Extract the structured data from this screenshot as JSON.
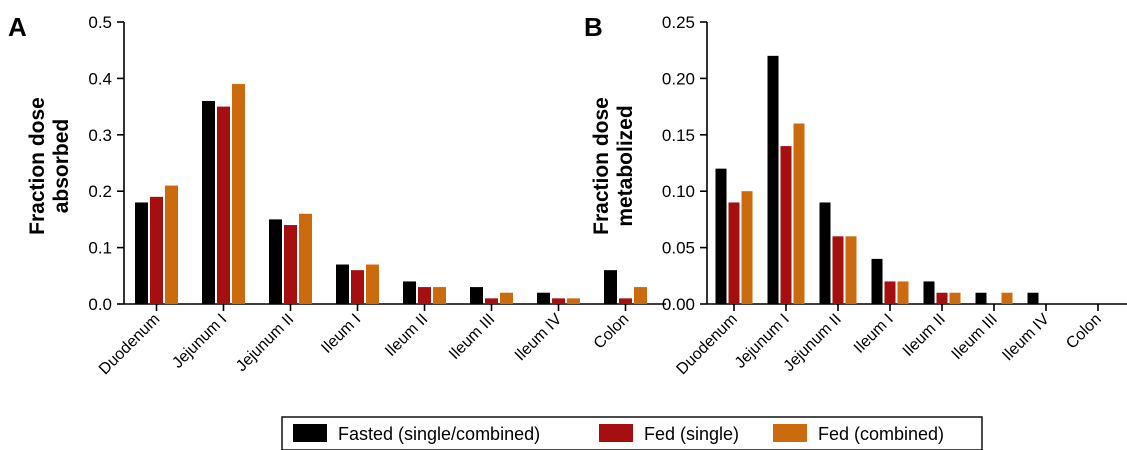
{
  "colors": {
    "fasted": "#000000",
    "fed_single": "#a50f0f",
    "fed_combined": "#cc6a0e"
  },
  "legend": {
    "items": [
      {
        "label": "Fasted (single/combined)",
        "color_key": "fasted"
      },
      {
        "label": "Fed (single)",
        "color_key": "fed_single"
      },
      {
        "label": "Fed (combined)",
        "color_key": "fed_combined"
      }
    ]
  },
  "chart_data": [
    {
      "panel": "A",
      "type": "bar",
      "ylabel_lines": [
        "Fraction dose",
        "absorbed"
      ],
      "xlabel": "",
      "ylim": [
        0,
        0.5
      ],
      "yticks": [
        "0.0",
        "0.1",
        "0.2",
        "0.3",
        "0.4",
        "0.5"
      ],
      "ytick_values": [
        0,
        0.1,
        0.2,
        0.3,
        0.4,
        0.5
      ],
      "categories": [
        "Duodenum",
        "Jejunum I",
        "Jejunum II",
        "Ileum I",
        "Ileum II",
        "Ileum III",
        "Ileum IV",
        "Colon"
      ],
      "series": [
        {
          "name": "Fasted (single/combined)",
          "values": [
            0.18,
            0.36,
            0.15,
            0.07,
            0.04,
            0.03,
            0.02,
            0.06
          ]
        },
        {
          "name": "Fed (single)",
          "values": [
            0.19,
            0.35,
            0.14,
            0.06,
            0.03,
            0.01,
            0.01,
            0.01
          ]
        },
        {
          "name": "Fed (combined)",
          "values": [
            0.21,
            0.39,
            0.16,
            0.07,
            0.03,
            0.02,
            0.01,
            0.03
          ]
        }
      ]
    },
    {
      "panel": "B",
      "type": "bar",
      "ylabel_lines": [
        "Fraction dose",
        "metabolized"
      ],
      "xlabel": "",
      "ylim": [
        0,
        0.25
      ],
      "yticks": [
        "0.00",
        "0.05",
        "0.10",
        "0.15",
        "0.20",
        "0.25"
      ],
      "ytick_values": [
        0,
        0.05,
        0.1,
        0.15,
        0.2,
        0.25
      ],
      "categories": [
        "Duodenum",
        "Jejunum I",
        "Jejunum II",
        "Ileum I",
        "Ileum II",
        "Ileum III",
        "Ileum IV",
        "Colon"
      ],
      "series": [
        {
          "name": "Fasted (single/combined)",
          "values": [
            0.12,
            0.22,
            0.09,
            0.04,
            0.02,
            0.01,
            0.01,
            0.0
          ]
        },
        {
          "name": "Fed (single)",
          "values": [
            0.09,
            0.14,
            0.06,
            0.02,
            0.01,
            0.0,
            0.0,
            0.0
          ]
        },
        {
          "name": "Fed (combined)",
          "values": [
            0.1,
            0.16,
            0.06,
            0.02,
            0.01,
            0.01,
            0.0,
            0.0
          ]
        }
      ]
    }
  ]
}
